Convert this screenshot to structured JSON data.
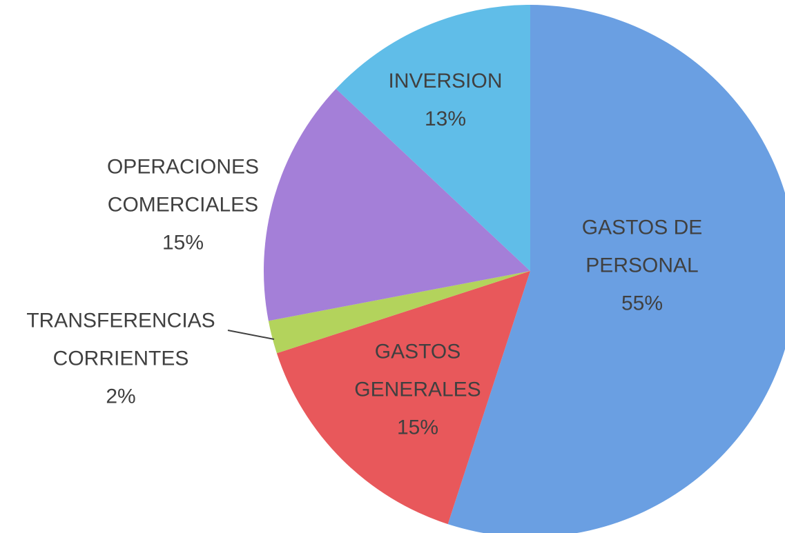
{
  "chart_data": {
    "type": "pie",
    "categories": [
      "GASTOS DE PERSONAL",
      "GASTOS GENERALES",
      "TRANSFERENCIAS CORRIENTES",
      "OPERACIONES COMERCIALES",
      "INVERSION"
    ],
    "values": [
      55,
      15,
      2,
      15,
      13
    ],
    "value_labels": [
      "55%",
      "15%",
      "2%",
      "15%",
      "13%"
    ],
    "colors": [
      "#6a9fe2",
      "#e8585b",
      "#b3d35c",
      "#a47fd8",
      "#60bde8"
    ]
  }
}
